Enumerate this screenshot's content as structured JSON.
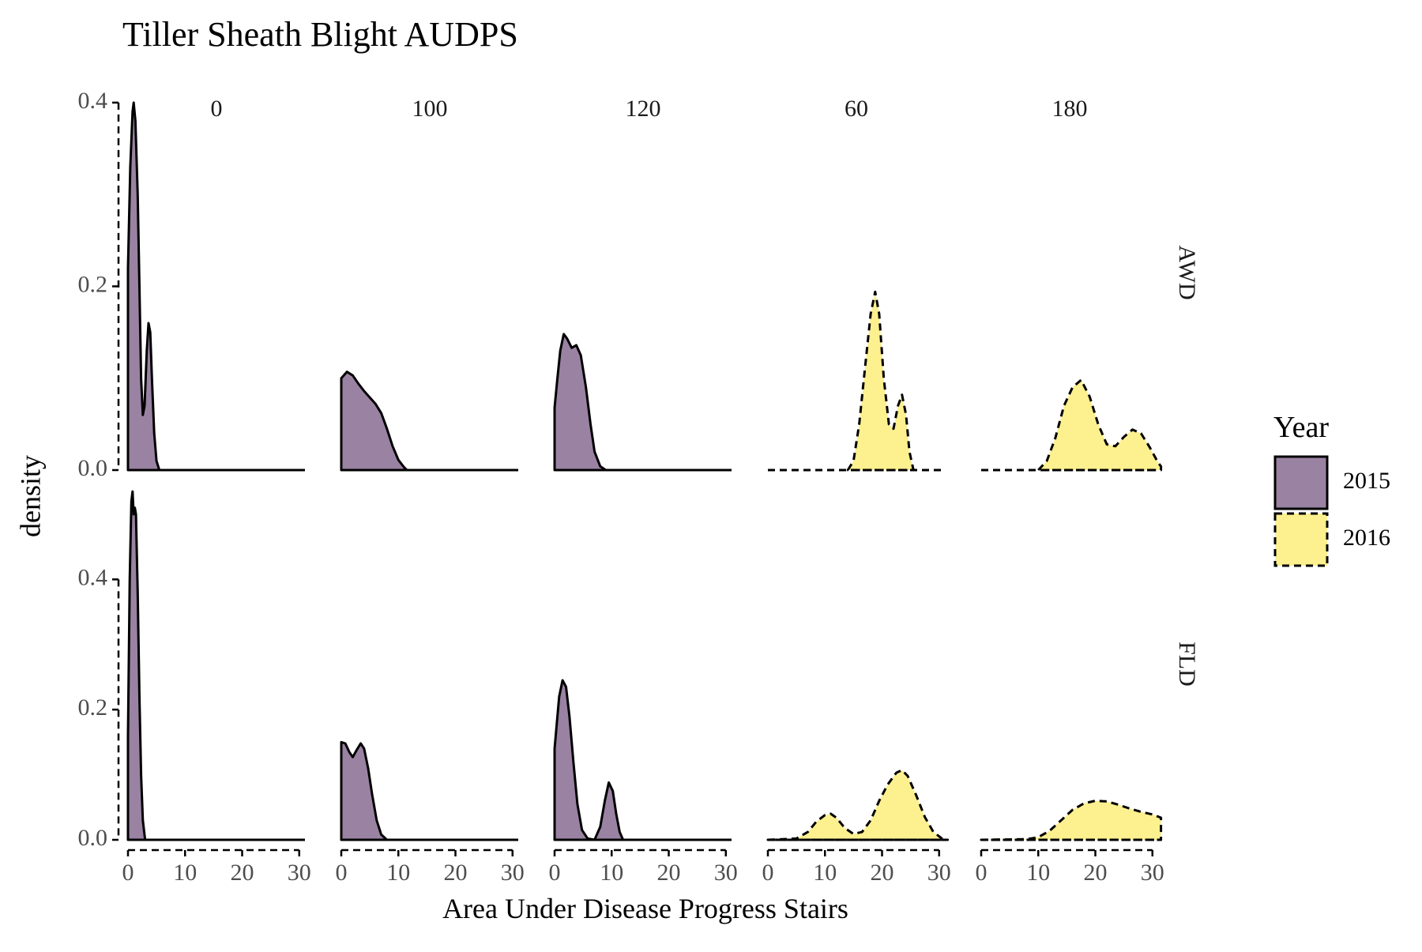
{
  "chart_data": {
    "type": "area",
    "subtype": "faceted density",
    "title": "Tiller Sheath Blight AUDPS",
    "xlabel": "Area Under Disease Progress Stairs",
    "ylabel": "density",
    "columns": [
      "0",
      "100",
      "120",
      "60",
      "180"
    ],
    "rows": [
      "AWD",
      "FLD"
    ],
    "xlim": [
      0,
      31
    ],
    "x_ticks": [
      0,
      10,
      20,
      30
    ],
    "y_ticks": [
      0.0,
      0.2,
      0.4
    ],
    "y_tick_labels": [
      "0.0",
      "0.2",
      "0.4"
    ],
    "row_ylim": [
      [
        0,
        0.43
      ],
      [
        0,
        0.54
      ]
    ],
    "grid": false,
    "legend": {
      "title": "Year",
      "position": "right",
      "entries": [
        {
          "label": "2015",
          "fill": "#9a82a2",
          "line": "solid"
        },
        {
          "label": "2016",
          "fill": "#fdf08f",
          "line": "dashed"
        }
      ]
    },
    "panels": [
      {
        "row": "AWD",
        "column": "0",
        "series": "2015",
        "x_range": [
          0,
          5.5
        ],
        "points": [
          [
            0,
            0.22
          ],
          [
            0.4,
            0.33
          ],
          [
            0.8,
            0.39
          ],
          [
            1.0,
            0.4
          ],
          [
            1.3,
            0.38
          ],
          [
            1.7,
            0.3
          ],
          [
            2.0,
            0.2
          ],
          [
            2.3,
            0.1
          ],
          [
            2.6,
            0.06
          ],
          [
            2.9,
            0.07
          ],
          [
            3.3,
            0.13
          ],
          [
            3.6,
            0.16
          ],
          [
            3.9,
            0.15
          ],
          [
            4.2,
            0.1
          ],
          [
            4.6,
            0.04
          ],
          [
            5.0,
            0.01
          ],
          [
            5.5,
            0
          ]
        ]
      },
      {
        "row": "AWD",
        "column": "100",
        "series": "2015",
        "x_range": [
          0,
          11.5
        ],
        "points": [
          [
            0,
            0.1
          ],
          [
            1,
            0.107
          ],
          [
            2,
            0.103
          ],
          [
            3,
            0.094
          ],
          [
            4,
            0.086
          ],
          [
            5,
            0.079
          ],
          [
            6,
            0.072
          ],
          [
            7,
            0.062
          ],
          [
            8,
            0.045
          ],
          [
            9,
            0.026
          ],
          [
            10,
            0.011
          ],
          [
            11,
            0.003
          ],
          [
            11.5,
            0
          ]
        ]
      },
      {
        "row": "AWD",
        "column": "120",
        "series": "2015",
        "x_range": [
          0,
          9
        ],
        "points": [
          [
            0,
            0.068
          ],
          [
            0.5,
            0.1
          ],
          [
            1,
            0.13
          ],
          [
            1.6,
            0.148
          ],
          [
            2.2,
            0.143
          ],
          [
            3,
            0.133
          ],
          [
            3.8,
            0.136
          ],
          [
            4.6,
            0.125
          ],
          [
            5.5,
            0.09
          ],
          [
            6.3,
            0.05
          ],
          [
            7,
            0.02
          ],
          [
            8,
            0.004
          ],
          [
            9,
            0
          ]
        ]
      },
      {
        "row": "AWD",
        "column": "60",
        "series": "2016",
        "x_range": [
          14,
          25.5
        ],
        "points": [
          [
            14,
            0
          ],
          [
            15,
            0.01
          ],
          [
            16,
            0.05
          ],
          [
            17,
            0.11
          ],
          [
            18,
            0.17
          ],
          [
            18.8,
            0.194
          ],
          [
            19.5,
            0.17
          ],
          [
            20.3,
            0.1
          ],
          [
            21.2,
            0.05
          ],
          [
            22,
            0.045
          ],
          [
            22.8,
            0.07
          ],
          [
            23.5,
            0.082
          ],
          [
            24.2,
            0.06
          ],
          [
            24.8,
            0.02
          ],
          [
            25.5,
            0
          ]
        ]
      },
      {
        "row": "AWD",
        "column": "180",
        "series": "2016",
        "x_range": [
          10,
          31.5
        ],
        "points": [
          [
            10,
            0
          ],
          [
            11.5,
            0.01
          ],
          [
            13,
            0.035
          ],
          [
            14.5,
            0.07
          ],
          [
            16,
            0.09
          ],
          [
            17.5,
            0.098
          ],
          [
            19,
            0.08
          ],
          [
            20.5,
            0.05
          ],
          [
            22,
            0.028
          ],
          [
            23.5,
            0.026
          ],
          [
            25,
            0.036
          ],
          [
            26.5,
            0.044
          ],
          [
            28,
            0.04
          ],
          [
            29.5,
            0.025
          ],
          [
            31,
            0.008
          ],
          [
            31.5,
            0.004
          ]
        ]
      },
      {
        "row": "FLD",
        "column": "0",
        "series": "2015",
        "x_range": [
          0,
          3
        ],
        "points": [
          [
            0,
            0.16
          ],
          [
            0.3,
            0.4
          ],
          [
            0.6,
            0.52
          ],
          [
            0.8,
            0.535
          ],
          [
            1.0,
            0.5
          ],
          [
            1.2,
            0.51
          ],
          [
            1.4,
            0.5
          ],
          [
            1.7,
            0.38
          ],
          [
            2.0,
            0.22
          ],
          [
            2.3,
            0.1
          ],
          [
            2.6,
            0.03
          ],
          [
            3.0,
            0
          ]
        ]
      },
      {
        "row": "FLD",
        "column": "100",
        "series": "2015",
        "x_range": [
          0,
          8
        ],
        "points": [
          [
            0,
            0.15
          ],
          [
            0.7,
            0.148
          ],
          [
            1.4,
            0.135
          ],
          [
            2.0,
            0.127
          ],
          [
            2.7,
            0.138
          ],
          [
            3.4,
            0.148
          ],
          [
            4.0,
            0.14
          ],
          [
            4.7,
            0.11
          ],
          [
            5.4,
            0.07
          ],
          [
            6.2,
            0.03
          ],
          [
            7,
            0.008
          ],
          [
            8,
            0
          ]
        ]
      },
      {
        "row": "FLD",
        "column": "120",
        "series": "2015",
        "x_range": [
          0,
          12
        ],
        "points": [
          [
            0,
            0.14
          ],
          [
            0.8,
            0.22
          ],
          [
            1.4,
            0.245
          ],
          [
            2.0,
            0.235
          ],
          [
            2.6,
            0.19
          ],
          [
            3.3,
            0.12
          ],
          [
            4,
            0.055
          ],
          [
            4.8,
            0.015
          ],
          [
            5.8,
            0.002
          ],
          [
            7,
            0
          ],
          [
            8,
            0.02
          ],
          [
            8.8,
            0.06
          ],
          [
            9.5,
            0.088
          ],
          [
            10.2,
            0.075
          ],
          [
            10.8,
            0.04
          ],
          [
            11.4,
            0.012
          ],
          [
            12,
            0
          ]
        ]
      },
      {
        "row": "FLD",
        "column": "60",
        "series": "2016",
        "x_range": [
          0,
          31.5
        ],
        "points": [
          [
            0,
            0
          ],
          [
            5,
            0.002
          ],
          [
            7,
            0.012
          ],
          [
            8.5,
            0.028
          ],
          [
            10,
            0.038
          ],
          [
            11,
            0.04
          ],
          [
            12,
            0.034
          ],
          [
            13.5,
            0.018
          ],
          [
            15,
            0.009
          ],
          [
            16.5,
            0.012
          ],
          [
            18,
            0.03
          ],
          [
            19.5,
            0.06
          ],
          [
            21,
            0.085
          ],
          [
            22.5,
            0.103
          ],
          [
            23.5,
            0.107
          ],
          [
            24.5,
            0.098
          ],
          [
            26,
            0.068
          ],
          [
            27.5,
            0.035
          ],
          [
            29,
            0.012
          ],
          [
            30.5,
            0.002
          ],
          [
            31.5,
            0
          ]
        ]
      },
      {
        "row": "FLD",
        "column": "180",
        "series": "2016",
        "x_range": [
          0,
          31.5
        ],
        "points": [
          [
            0,
            0
          ],
          [
            8,
            0.001
          ],
          [
            10,
            0.004
          ],
          [
            12,
            0.014
          ],
          [
            14,
            0.03
          ],
          [
            16,
            0.046
          ],
          [
            18,
            0.056
          ],
          [
            20,
            0.06
          ],
          [
            22,
            0.059
          ],
          [
            24,
            0.054
          ],
          [
            26,
            0.048
          ],
          [
            28,
            0.043
          ],
          [
            30,
            0.039
          ],
          [
            31.5,
            0.034
          ]
        ]
      }
    ]
  }
}
